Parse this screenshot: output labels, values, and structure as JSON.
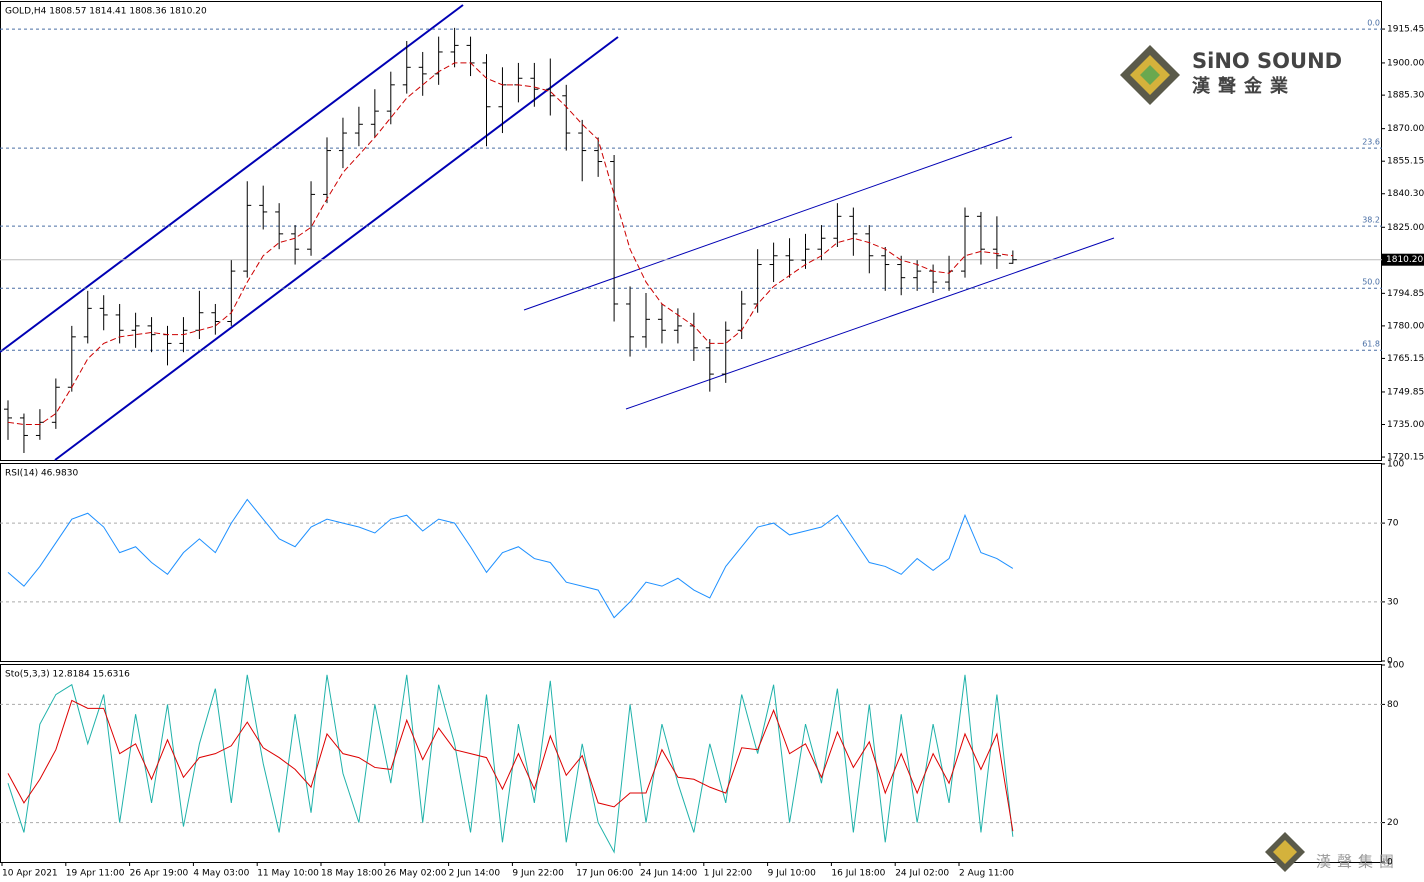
{
  "chart_data": [
    {
      "type": "ohlc",
      "title": "GOLD,H4  1808.57 1814.41 1808.36 1810.20",
      "color": "#000000",
      "categories": [
        "10 Apr 2021",
        null,
        null,
        null,
        "19 Apr 11:00",
        null,
        null,
        null,
        "26 Apr 19:00",
        null,
        null,
        null,
        "4 May 03:00",
        null,
        null,
        null,
        "11 May 10:00",
        null,
        null,
        null,
        "18 May 18:00",
        null,
        null,
        null,
        "26 May 02:00",
        null,
        null,
        null,
        "2 Jun 14:00",
        null,
        null,
        null,
        "9 Jun 22:00",
        null,
        null,
        null,
        "17 Jun 06:00",
        null,
        null,
        null,
        "24 Jun 14:00",
        null,
        null,
        null,
        "1 Jul 22:00",
        null,
        null,
        null,
        "9 Jul 10:00",
        null,
        null,
        null,
        "16 Jul 18:00",
        null,
        null,
        null,
        "24 Jul 02:00",
        null,
        null,
        null,
        "2 Aug 11:00",
        null,
        null,
        null
      ],
      "open": [
        1742,
        1738,
        1730,
        1736,
        1752,
        1775,
        1788,
        1785,
        1778,
        1780,
        1776,
        1772,
        1778,
        1786,
        1782,
        1805,
        1835,
        1832,
        1822,
        1815,
        1840,
        1860,
        1868,
        1872,
        1878,
        1890,
        1898,
        1895,
        1905,
        1908,
        1900,
        1880,
        1890,
        1893,
        1888,
        1885,
        1868,
        1860,
        1855,
        1790,
        1775,
        1783,
        1778,
        1780,
        1770,
        1758,
        1778,
        1790,
        1808,
        1812,
        1810,
        1815,
        1820,
        1830,
        1822,
        1812,
        1808,
        1802,
        1805,
        1800,
        1805,
        1830,
        1815,
        1808.57
      ],
      "high": [
        1746,
        1740,
        1742,
        1756,
        1780,
        1796,
        1794,
        1790,
        1786,
        1784,
        1780,
        1784,
        1796,
        1790,
        1810,
        1846,
        1844,
        1836,
        1826,
        1846,
        1866,
        1875,
        1880,
        1888,
        1896,
        1910,
        1905,
        1912,
        1916,
        1912,
        1904,
        1898,
        1900,
        1900,
        1902,
        1890,
        1874,
        1866,
        1858,
        1798,
        1795,
        1790,
        1788,
        1786,
        1774,
        1782,
        1796,
        1815,
        1818,
        1820,
        1822,
        1826,
        1836,
        1834,
        1826,
        1816,
        1812,
        1810,
        1808,
        1812,
        1834,
        1832,
        1830,
        1814.41
      ],
      "low": [
        1728,
        1722,
        1728,
        1733,
        1750,
        1772,
        1778,
        1772,
        1770,
        1768,
        1762,
        1768,
        1774,
        1776,
        1780,
        1802,
        1824,
        1815,
        1808,
        1812,
        1836,
        1852,
        1862,
        1866,
        1872,
        1886,
        1885,
        1890,
        1898,
        1894,
        1862,
        1868,
        1882,
        1880,
        1876,
        1860,
        1846,
        1848,
        1782,
        1766,
        1770,
        1772,
        1772,
        1764,
        1750,
        1754,
        1774,
        1786,
        1800,
        1802,
        1806,
        1810,
        1816,
        1812,
        1804,
        1796,
        1794,
        1796,
        1795,
        1796,
        1802,
        1808,
        1806,
        1808.36
      ],
      "close": [
        1738,
        1730,
        1736,
        1752,
        1775,
        1788,
        1785,
        1778,
        1780,
        1776,
        1772,
        1778,
        1786,
        1782,
        1805,
        1835,
        1832,
        1822,
        1815,
        1840,
        1860,
        1868,
        1872,
        1878,
        1890,
        1898,
        1895,
        1905,
        1908,
        1900,
        1880,
        1890,
        1893,
        1888,
        1885,
        1868,
        1860,
        1855,
        1790,
        1775,
        1783,
        1778,
        1780,
        1770,
        1758,
        1778,
        1790,
        1808,
        1812,
        1810,
        1815,
        1820,
        1830,
        1822,
        1812,
        1808,
        1802,
        1805,
        1800,
        1805,
        1830,
        1815,
        1812,
        1810.2
      ],
      "ma": {
        "color": "#cc0000",
        "values": [
          1736,
          1735,
          1735,
          1740,
          1752,
          1765,
          1772,
          1775,
          1776,
          1777,
          1776,
          1776,
          1778,
          1780,
          1786,
          1800,
          1812,
          1818,
          1820,
          1825,
          1838,
          1850,
          1858,
          1866,
          1875,
          1884,
          1890,
          1896,
          1900,
          1900,
          1893,
          1890,
          1890,
          1889,
          1887,
          1880,
          1872,
          1865,
          1840,
          1815,
          1800,
          1790,
          1785,
          1780,
          1772,
          1772,
          1778,
          1790,
          1798,
          1803,
          1808,
          1812,
          1818,
          1820,
          1818,
          1815,
          1810,
          1808,
          1805,
          1804,
          1812,
          1814,
          1813,
          1812
        ]
      },
      "ylim": [
        1718.8,
        1927.8
      ],
      "yticks": [
        {
          "value": 1915.45,
          "label": "1915.45"
        },
        {
          "value": 1900,
          "label": "1900.00"
        },
        {
          "value": 1885.3,
          "label": "1885.30"
        },
        {
          "value": 1870,
          "label": "1870.00"
        },
        {
          "value": 1855.15,
          "label": "1855.15"
        },
        {
          "value": 1840.3,
          "label": "1840.30"
        },
        {
          "value": 1825,
          "label": "1825.00"
        },
        {
          "value": 1794.85,
          "label": "1794.85"
        },
        {
          "value": 1780,
          "label": "1780.00"
        },
        {
          "value": 1765.15,
          "label": "1765.15"
        },
        {
          "value": 1749.85,
          "label": "1749.85"
        },
        {
          "value": 1735,
          "label": "1735.00"
        },
        {
          "value": 1720.15,
          "label": "1720.15"
        }
      ],
      "last_price": {
        "value": 1810.2,
        "label": "1810.20"
      },
      "fibo": [
        {
          "value": 1915.45,
          "label": "0.0"
        },
        {
          "value": 1861.1,
          "label": "23.6"
        },
        {
          "value": 1825.5,
          "label": "38.2"
        },
        {
          "value": 1797.2,
          "label": "50.0"
        },
        {
          "value": 1768.9,
          "label": "61.8"
        }
      ],
      "fibo_color": "#4a6fa5",
      "grid": false
    },
    {
      "type": "line",
      "title": "RSI(14) 46.9830",
      "grid": true,
      "series": [
        {
          "color": "#1e90ff",
          "values": [
            45,
            38,
            48,
            60,
            72,
            75,
            68,
            55,
            58,
            50,
            44,
            55,
            62,
            55,
            70,
            82,
            72,
            62,
            58,
            68,
            72,
            70,
            68,
            65,
            72,
            74,
            66,
            72,
            70,
            58,
            45,
            55,
            58,
            52,
            50,
            40,
            38,
            36,
            22,
            30,
            40,
            38,
            42,
            36,
            32,
            48,
            58,
            68,
            70,
            64,
            66,
            68,
            74,
            62,
            50,
            48,
            44,
            52,
            46,
            52,
            74,
            55,
            52,
            46.98
          ]
        }
      ],
      "ylim": [
        0,
        100
      ],
      "yticks": [
        0,
        30,
        70,
        100
      ]
    },
    {
      "type": "line",
      "title": "Sto(5,3,3) 12.8184 15.6316",
      "grid": true,
      "series": [
        {
          "color": "#20b2aa",
          "values": [
            40,
            15,
            70,
            85,
            90,
            60,
            85,
            20,
            75,
            30,
            80,
            18,
            60,
            88,
            30,
            95,
            50,
            15,
            75,
            25,
            95,
            45,
            20,
            80,
            40,
            95,
            20,
            90,
            60,
            15,
            85,
            10,
            70,
            30,
            92,
            10,
            60,
            20,
            5,
            80,
            20,
            70,
            40,
            15,
            60,
            30,
            85,
            55,
            90,
            20,
            70,
            40,
            88,
            15,
            80,
            10,
            75,
            20,
            70,
            30,
            95,
            15,
            85,
            12.82
          ]
        },
        {
          "color": "#dd0000",
          "values": [
            45,
            30,
            42,
            57,
            82,
            78,
            78,
            55,
            60,
            42,
            62,
            43,
            53,
            55,
            59,
            71,
            58,
            53,
            47,
            38,
            65,
            55,
            53,
            48,
            47,
            72,
            52,
            68,
            57,
            55,
            53,
            37,
            55,
            37,
            64,
            44,
            54,
            30,
            28,
            35,
            35,
            57,
            43,
            42,
            38,
            35,
            58,
            57,
            77,
            55,
            60,
            43,
            66,
            48,
            61,
            35,
            55,
            35,
            55,
            40,
            65,
            47,
            65,
            15.63
          ]
        }
      ],
      "ylim": [
        0,
        100
      ],
      "yticks": [
        0,
        20,
        80,
        100
      ]
    }
  ],
  "logo": {
    "brand": "SiNO SOUND",
    "cn": "漢聲金業",
    "footer": "漢聲集團"
  }
}
